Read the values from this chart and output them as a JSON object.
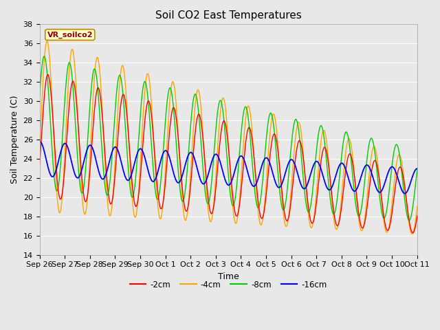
{
  "title": "Soil CO2 East Temperatures",
  "xlabel": "Time",
  "ylabel": "Soil Temperature (C)",
  "ylim": [
    14,
    38
  ],
  "yticks": [
    14,
    16,
    18,
    20,
    22,
    24,
    26,
    28,
    30,
    32,
    34,
    36,
    38
  ],
  "xtick_labels": [
    "Sep 26",
    "Sep 27",
    "Sep 28",
    "Sep 29",
    "Sep 30",
    "Oct 1",
    "Oct 2",
    "Oct 3",
    "Oct 4",
    "Oct 5",
    "Oct 6",
    "Oct 7",
    "Oct 8",
    "Oct 9",
    "Oct 10",
    "Oct 11"
  ],
  "legend_label": "VR_soilco2",
  "series_labels": [
    "-2cm",
    "-4cm",
    "-8cm",
    "-16cm"
  ],
  "series_colors": [
    "#ff0000",
    "#ffa500",
    "#00cc00",
    "#0000ff"
  ],
  "background_color": "#e8e8e8",
  "title_fontsize": 11,
  "axis_label_fontsize": 9,
  "tick_fontsize": 8
}
